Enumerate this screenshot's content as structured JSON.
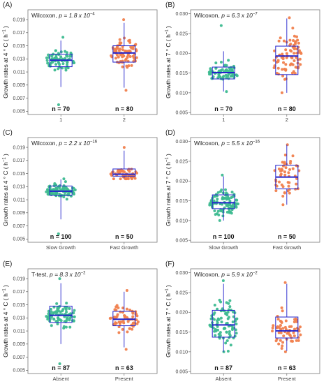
{
  "colors": {
    "green": "#3dbb90",
    "orange": "#f07f4d",
    "box": "#2222cc",
    "frame": "#777777"
  },
  "chart_data": [
    {
      "type": "box-swarm",
      "id": "A",
      "label": "(A)",
      "test": "Wilcoxon, ",
      "p_text": "p = 1.8 x 10",
      "p_exp": "−4",
      "ylabel": "Growth rates at 4 ° C ( h",
      "ylabel_exp": "−1",
      "ylabel_tail": " )",
      "ylim": [
        0.0045,
        0.0205
      ],
      "yticks": [
        0.005,
        0.007,
        0.009,
        0.011,
        0.013,
        0.015,
        0.017,
        0.019
      ],
      "ytick_labels": [
        "0.005",
        "0.007",
        "0.009",
        "0.011",
        "0.013",
        "0.015",
        "0.017",
        "0.019"
      ],
      "categories": [
        "1",
        "2"
      ],
      "n_labels": [
        "n = 70",
        "n = 80"
      ],
      "boxes": [
        {
          "q1": 0.0118,
          "median": 0.0128,
          "q3": 0.0137,
          "wlo": 0.0087,
          "whi": 0.0158
        },
        {
          "q1": 0.0125,
          "median": 0.0139,
          "q3": 0.015,
          "wlo": 0.0086,
          "whi": 0.0185
        }
      ],
      "points": [
        {
          "n": 70,
          "min": 0.006,
          "max": 0.0163
        },
        {
          "n": 80,
          "min": 0.0082,
          "max": 0.019
        }
      ]
    },
    {
      "type": "box-swarm",
      "id": "B",
      "label": "(B)",
      "test": "Wilcoxon, ",
      "p_text": "p = 6.3 x 10",
      "p_exp": "−7",
      "ylabel": "Growth rates at 7 ° C ( h",
      "ylabel_exp": "−1",
      "ylabel_tail": " )",
      "ylim": [
        0.0045,
        0.031
      ],
      "yticks": [
        0.005,
        0.01,
        0.015,
        0.02,
        0.025,
        0.03
      ],
      "ytick_labels": [
        "0.005",
        "0.010",
        "0.015",
        "0.020",
        "0.025",
        "0.030"
      ],
      "categories": [
        "1",
        "2"
      ],
      "n_labels": [
        "n = 70",
        "n = 80"
      ],
      "boxes": [
        {
          "q1": 0.0135,
          "median": 0.0151,
          "q3": 0.0165,
          "wlo": 0.0103,
          "whi": 0.0205
        },
        {
          "q1": 0.0146,
          "median": 0.0193,
          "q3": 0.0218,
          "wlo": 0.01,
          "whi": 0.0288
        }
      ],
      "points": [
        {
          "n": 70,
          "min": 0.0103,
          "max": 0.027
        },
        {
          "n": 80,
          "min": 0.01,
          "max": 0.029
        }
      ]
    },
    {
      "type": "box-swarm",
      "id": "C",
      "label": "(C)",
      "test": "Wilcoxon, ",
      "p_text": "p = 2.2 x 10",
      "p_exp": "−16",
      "ylabel": "Growth rates at 4 ° C ( h",
      "ylabel_exp": "−1",
      "ylabel_tail": " )",
      "ylim": [
        0.0045,
        0.0205
      ],
      "yticks": [
        0.005,
        0.007,
        0.009,
        0.011,
        0.013,
        0.015,
        0.017,
        0.019
      ],
      "ytick_labels": [
        "0.005",
        "0.007",
        "0.009",
        "0.011",
        "0.013",
        "0.015",
        "0.017",
        "0.019"
      ],
      "categories": [
        "Slow Growth",
        "Fast Growth"
      ],
      "n_labels": [
        "n = 100",
        "n = 50"
      ],
      "boxes": [
        {
          "q1": 0.0117,
          "median": 0.0123,
          "q3": 0.0131,
          "wlo": 0.008,
          "whi": 0.0141
        },
        {
          "q1": 0.0146,
          "median": 0.0149,
          "q3": 0.0157,
          "wlo": 0.0143,
          "whi": 0.0185
        }
      ],
      "points": [
        {
          "n": 100,
          "min": 0.0058,
          "max": 0.0142
        },
        {
          "n": 50,
          "min": 0.0142,
          "max": 0.019
        }
      ]
    },
    {
      "type": "box-swarm",
      "id": "D",
      "label": "(D)",
      "test": "Wilcoxon, ",
      "p_text": "p = 5.5 x 10",
      "p_exp": "−16",
      "ylabel": "Growth rates at 7 ° C ( h",
      "ylabel_exp": "−1",
      "ylabel_tail": " )",
      "ylim": [
        0.0045,
        0.031
      ],
      "yticks": [
        0.005,
        0.01,
        0.015,
        0.02,
        0.025,
        0.03
      ],
      "ytick_labels": [
        "0.005",
        "0.010",
        "0.015",
        "0.020",
        "0.025",
        "0.030"
      ],
      "categories": [
        "Slow Growth",
        "Fast Growth"
      ],
      "n_labels": [
        "n = 100",
        "n = 50"
      ],
      "boxes": [
        {
          "q1": 0.013,
          "median": 0.0145,
          "q3": 0.0165,
          "wlo": 0.01,
          "whi": 0.0212
        },
        {
          "q1": 0.018,
          "median": 0.021,
          "q3": 0.024,
          "wlo": 0.014,
          "whi": 0.0292
        }
      ],
      "points": [
        {
          "n": 100,
          "min": 0.01,
          "max": 0.0215
        },
        {
          "n": 50,
          "min": 0.014,
          "max": 0.0292
        }
      ]
    },
    {
      "type": "box-swarm",
      "id": "E",
      "label": "(E)",
      "test": "T-test, ",
      "p_text": "p = 8.3 x 10",
      "p_exp": "−2",
      "ylabel": "Growth rates at 4 ° C ( h",
      "ylabel_exp": "−1",
      "ylabel_tail": " )",
      "ylim": [
        0.0045,
        0.0205
      ],
      "yticks": [
        0.005,
        0.007,
        0.009,
        0.011,
        0.013,
        0.015,
        0.017,
        0.019
      ],
      "ytick_labels": [
        "0.005",
        "0.007",
        "0.009",
        "0.011",
        "0.013",
        "0.015",
        "0.017",
        "0.019"
      ],
      "categories": [
        "Absent",
        "Present"
      ],
      "n_labels": [
        "n = 87",
        "n = 63"
      ],
      "boxes": [
        {
          "q1": 0.0123,
          "median": 0.0134,
          "q3": 0.0148,
          "wlo": 0.009,
          "whi": 0.0183
        },
        {
          "q1": 0.0118,
          "median": 0.0128,
          "q3": 0.014,
          "wlo": 0.0085,
          "whi": 0.017
        }
      ],
      "points": [
        {
          "n": 87,
          "min": 0.006,
          "max": 0.019
        },
        {
          "n": 63,
          "min": 0.0082,
          "max": 0.0172
        }
      ]
    },
    {
      "type": "box-swarm",
      "id": "F",
      "label": "(F)",
      "test": "Wilcoxon, ",
      "p_text": "p = 5.9 x 10",
      "p_exp": "−2",
      "ylabel": "Growth rates at 7 ° C ( h",
      "ylabel_exp": "−1",
      "ylabel_tail": " )",
      "ylim": [
        0.0045,
        0.031
      ],
      "yticks": [
        0.005,
        0.01,
        0.015,
        0.02,
        0.025,
        0.03
      ],
      "ytick_labels": [
        "0.005",
        "0.010",
        "0.015",
        "0.020",
        "0.025",
        "0.030"
      ],
      "categories": [
        "Absent",
        "Present"
      ],
      "n_labels": [
        "n = 87",
        "n = 63"
      ],
      "boxes": [
        {
          "q1": 0.0137,
          "median": 0.0168,
          "q3": 0.0205,
          "wlo": 0.01,
          "whi": 0.0272
        },
        {
          "q1": 0.0135,
          "median": 0.0153,
          "q3": 0.0188,
          "wlo": 0.0102,
          "whi": 0.0272
        }
      ],
      "points": [
        {
          "n": 87,
          "min": 0.01,
          "max": 0.028
        },
        {
          "n": 63,
          "min": 0.01,
          "max": 0.0275
        }
      ]
    }
  ]
}
